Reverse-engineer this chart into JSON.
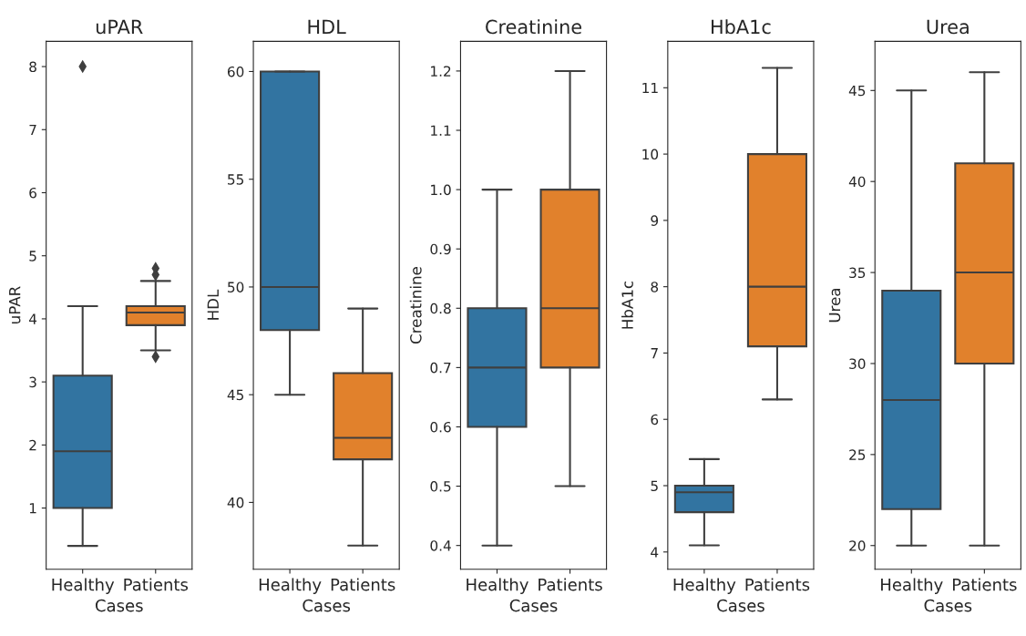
{
  "chart_data": [
    {
      "type": "box",
      "title": "uPAR",
      "xlabel": "Cases",
      "ylabel": "uPAR",
      "categories": [
        "Healthy",
        "Patients"
      ],
      "colors": [
        "#3274a1",
        "#e1812c"
      ],
      "marker": "diamond",
      "grid": false,
      "ylim": [
        0.03,
        8.4
      ],
      "yticks": [
        1,
        2,
        3,
        4,
        5,
        6,
        7,
        8
      ],
      "boxes": [
        {
          "low": 0.4,
          "q1": 1.0,
          "median": 1.9,
          "q3": 3.1,
          "high": 4.2,
          "outliers": [
            8.0
          ]
        },
        {
          "low": 3.5,
          "q1": 3.9,
          "median": 4.1,
          "q3": 4.2,
          "high": 4.6,
          "outliers": [
            3.4,
            4.7,
            4.8
          ]
        }
      ]
    },
    {
      "type": "box",
      "title": "HDL",
      "xlabel": "Cases",
      "ylabel": "HDL",
      "categories": [
        "Healthy",
        "Patients"
      ],
      "colors": [
        "#3274a1",
        "#e1812c"
      ],
      "marker": "diamond",
      "grid": false,
      "ylim": [
        36.9,
        61.4
      ],
      "yticks": [
        40,
        45,
        50,
        55,
        60
      ],
      "boxes": [
        {
          "low": 45,
          "q1": 48,
          "median": 50,
          "q3": 60,
          "high": 60
        },
        {
          "low": 38,
          "q1": 42,
          "median": 43,
          "q3": 46,
          "high": 49
        }
      ]
    },
    {
      "type": "box",
      "title": "Creatinine",
      "xlabel": "Cases",
      "ylabel": "Creatinine",
      "categories": [
        "Healthy",
        "Patients"
      ],
      "colors": [
        "#3274a1",
        "#e1812c"
      ],
      "marker": "diamond",
      "grid": false,
      "ylim": [
        0.36,
        1.25
      ],
      "yticks": [
        {
          "value": 0.4,
          "label": "0.4"
        },
        {
          "value": 0.5,
          "label": "0.5"
        },
        {
          "value": 0.6,
          "label": "0.6"
        },
        {
          "value": 0.7,
          "label": "0.7"
        },
        {
          "value": 0.8,
          "label": "0.8"
        },
        {
          "value": 0.9,
          "label": "0.9"
        },
        {
          "value": 1.0,
          "label": "1.0"
        },
        {
          "value": 1.1,
          "label": "1.1"
        },
        {
          "value": 1.2,
          "label": "1.2"
        }
      ],
      "boxes": [
        {
          "low": 0.4,
          "q1": 0.6,
          "median": 0.7,
          "q3": 0.8,
          "high": 1.0
        },
        {
          "low": 0.5,
          "q1": 0.7,
          "median": 0.8,
          "q3": 1.0,
          "high": 1.2
        }
      ]
    },
    {
      "type": "box",
      "title": "HbA1c",
      "xlabel": "Cases",
      "ylabel": "HbA1c",
      "categories": [
        "Healthy",
        "Patients"
      ],
      "colors": [
        "#3274a1",
        "#e1812c"
      ],
      "marker": "diamond",
      "grid": false,
      "ylim": [
        3.74,
        11.7
      ],
      "yticks": [
        4,
        5,
        6,
        7,
        8,
        9,
        10,
        11
      ],
      "boxes": [
        {
          "low": 4.1,
          "q1": 4.6,
          "median": 4.9,
          "q3": 5.0,
          "high": 5.4
        },
        {
          "low": 6.3,
          "q1": 7.1,
          "median": 8.0,
          "q3": 10.0,
          "high": 11.3
        }
      ]
    },
    {
      "type": "box",
      "title": "Urea",
      "xlabel": "Cases",
      "ylabel": "Urea",
      "categories": [
        "Healthy",
        "Patients"
      ],
      "colors": [
        "#3274a1",
        "#e1812c"
      ],
      "marker": "diamond",
      "grid": false,
      "ylim": [
        18.7,
        47.7
      ],
      "yticks": [
        20,
        25,
        30,
        35,
        40,
        45
      ],
      "boxes": [
        {
          "low": 20,
          "q1": 22,
          "median": 28,
          "q3": 34,
          "high": 45
        },
        {
          "low": 20,
          "q1": 30,
          "median": 35,
          "q3": 41,
          "high": 46
        }
      ]
    }
  ]
}
